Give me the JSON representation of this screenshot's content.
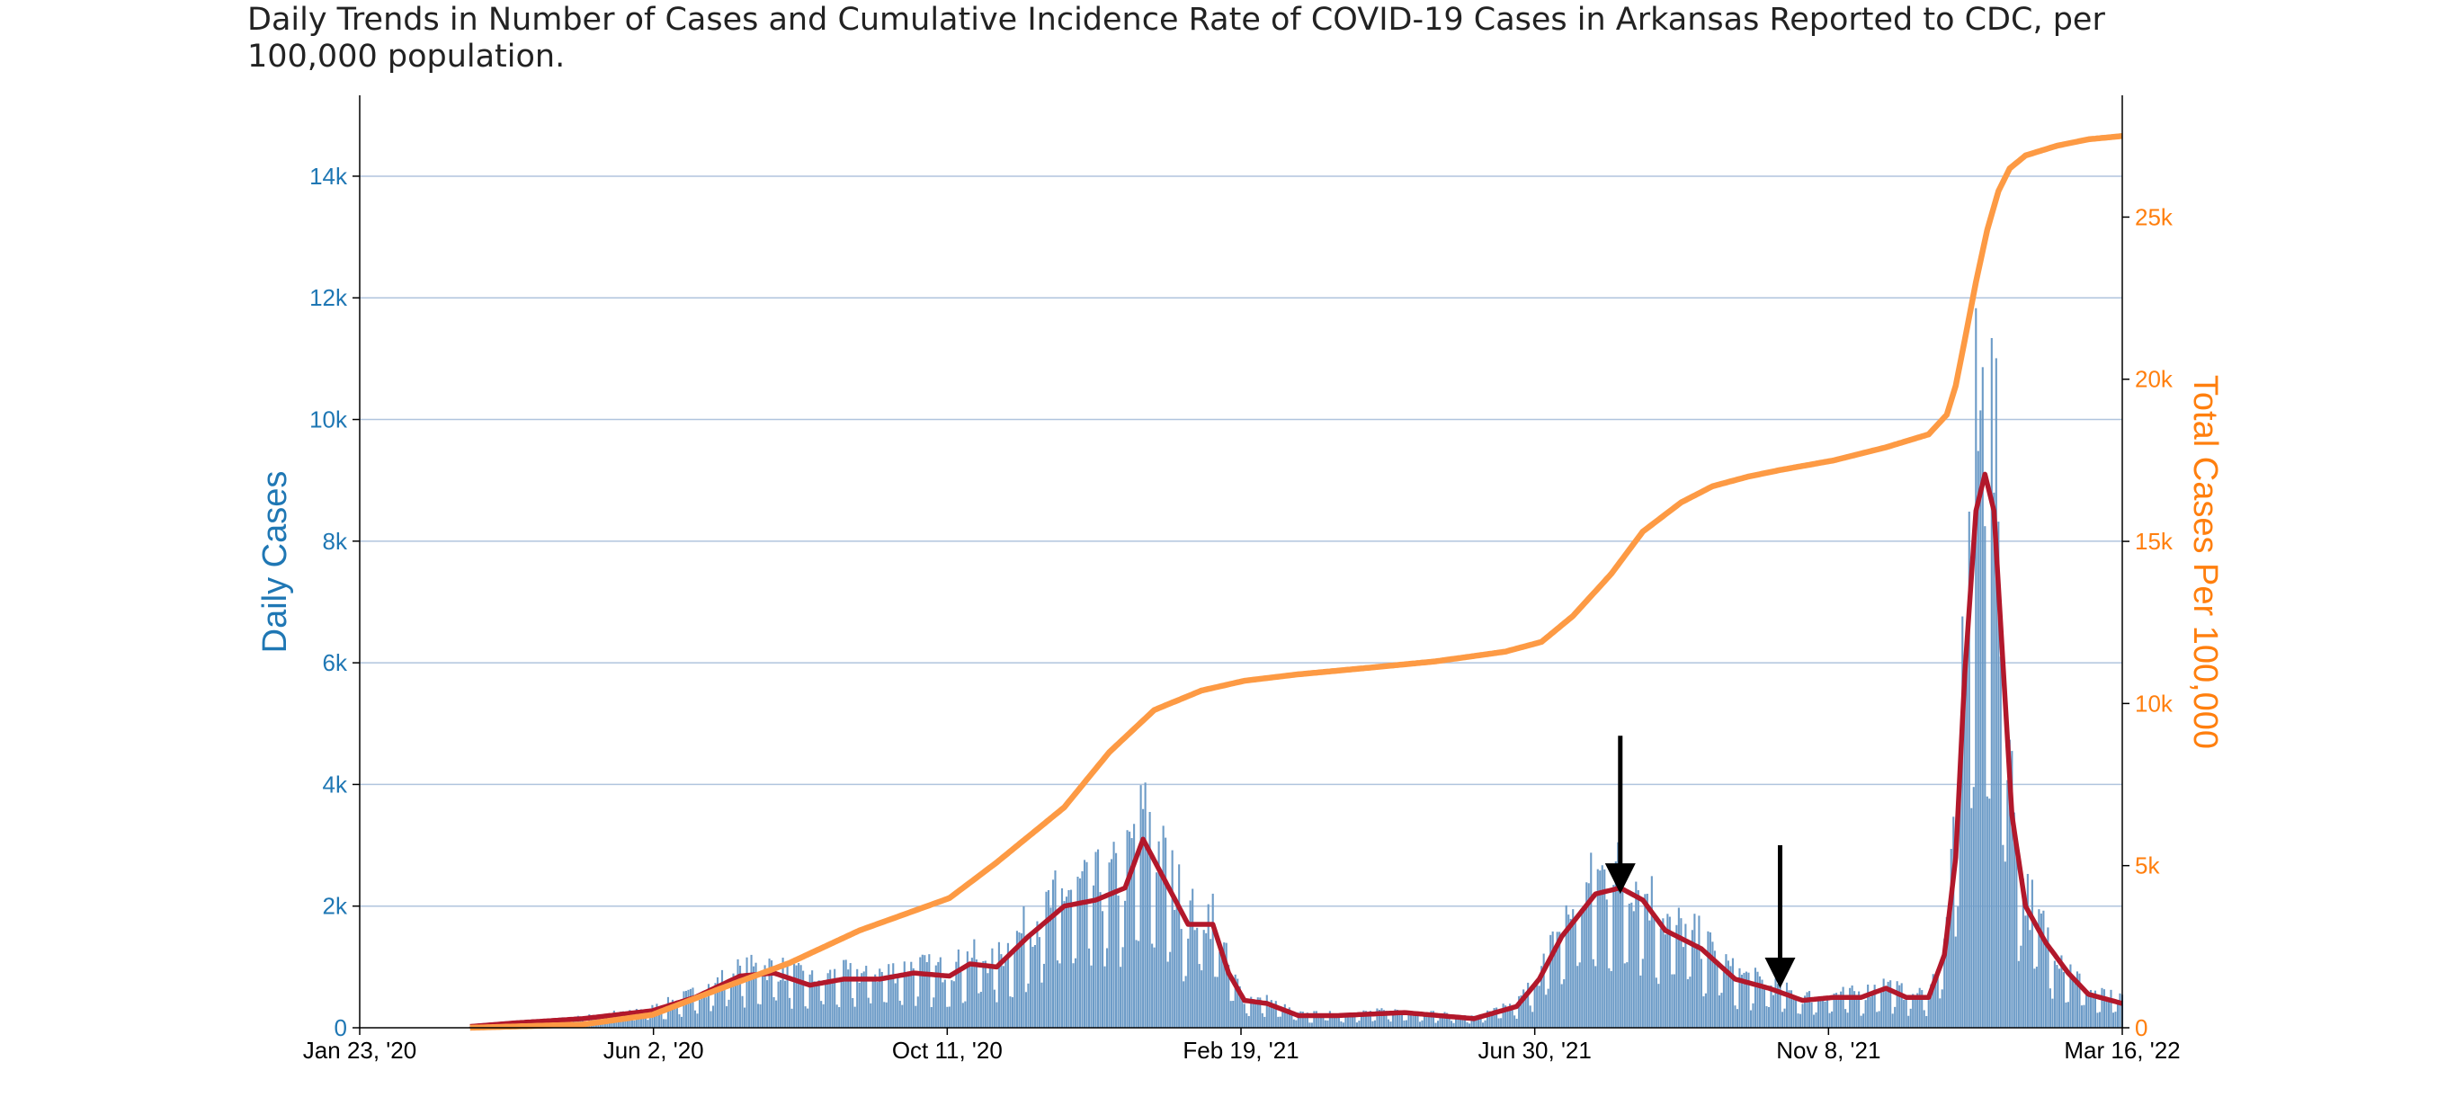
{
  "chart_data": {
    "type": "bar",
    "title": "Daily Trends in Number of Cases and Cumulative Incidence Rate of COVID-19 Cases in Arkansas Reported to CDC, per 100,000 population.",
    "ylabel": "Daily Cases",
    "ylabel_right": "Total Cases Per 100,000",
    "grid": true,
    "x_range": [
      "2020-01-23",
      "2022-03-16"
    ],
    "x_tick_labels": [
      "Jan 23, '20",
      "Jun 2, '20",
      "Oct 11, '20",
      "Feb 19, '21",
      "Jun 30, '21",
      "Nov 8, '21",
      "Mar 16, '22"
    ],
    "y_left_range": [
      0,
      15300
    ],
    "y_left_tick_values": [
      0,
      2000,
      4000,
      6000,
      8000,
      10000,
      12000,
      14000
    ],
    "y_left_tick_labels": [
      "0",
      "2k",
      "4k",
      "6k",
      "8k",
      "10k",
      "12k",
      "14k"
    ],
    "y_right_range": [
      0,
      28700
    ],
    "y_right_tick_values": [
      0,
      5000,
      10000,
      15000,
      20000,
      25000
    ],
    "y_right_tick_labels": [
      "0",
      "5k",
      "10k",
      "15k",
      "20k",
      "25k"
    ],
    "colors": {
      "bars": "#6c9bc7",
      "moving_average": "#b2182b",
      "cumulative": "#fd9a44",
      "left_axis": "#1f77b4",
      "right_axis": "#ff7f0e",
      "grid": "#b0c4de"
    },
    "daily_cases_keypoints": {
      "x": [
        "2020-03-12",
        "2020-04-01",
        "2020-05-01",
        "2020-06-01",
        "2020-06-20",
        "2020-07-10",
        "2020-07-25",
        "2020-08-10",
        "2020-08-25",
        "2020-09-10",
        "2020-09-25",
        "2020-10-11",
        "2020-10-20",
        "2020-11-01",
        "2020-11-15",
        "2020-12-01",
        "2020-12-15",
        "2020-12-28",
        "2021-01-05",
        "2021-01-15",
        "2021-01-25",
        "2021-02-05",
        "2021-02-12",
        "2021-02-19",
        "2021-03-01",
        "2021-03-15",
        "2021-04-01",
        "2021-05-01",
        "2021-06-01",
        "2021-06-20",
        "2021-06-30",
        "2021-07-10",
        "2021-07-25",
        "2021-08-05",
        "2021-08-15",
        "2021-08-25",
        "2021-09-10",
        "2021-09-25",
        "2021-10-10",
        "2021-10-25",
        "2021-11-08",
        "2021-11-20",
        "2021-12-01",
        "2021-12-10",
        "2021-12-20",
        "2021-12-27",
        "2022-01-01",
        "2022-01-05",
        "2022-01-10",
        "2022-01-14",
        "2022-01-18",
        "2022-01-22",
        "2022-01-26",
        "2022-02-01",
        "2022-02-10",
        "2022-02-20",
        "2022-03-01",
        "2022-03-16"
      ],
      "y": [
        20,
        80,
        150,
        280,
        500,
        850,
        900,
        700,
        800,
        800,
        900,
        850,
        1050,
        1000,
        1500,
        2000,
        2100,
        2300,
        3100,
        2400,
        1700,
        1700,
        900,
        450,
        400,
        200,
        200,
        250,
        150,
        350,
        800,
        1500,
        2200,
        2300,
        2100,
        1600,
        1300,
        800,
        650,
        450,
        500,
        500,
        650,
        500,
        500,
        1200,
        2800,
        5800,
        8500,
        9100,
        8500,
        6000,
        3500,
        2000,
        1400,
        900,
        550,
        400
      ]
    },
    "cumulative_keypoints": {
      "x": [
        "2020-03-12",
        "2020-05-01",
        "2020-06-01",
        "2020-07-01",
        "2020-08-01",
        "2020-09-01",
        "2020-10-11",
        "2020-11-01",
        "2020-12-01",
        "2020-12-21",
        "2021-01-10",
        "2021-01-31",
        "2021-02-19",
        "2021-03-15",
        "2021-04-15",
        "2021-05-15",
        "2021-06-15",
        "2021-07-01",
        "2021-07-15",
        "2021-08-01",
        "2021-08-15",
        "2021-09-01",
        "2021-09-15",
        "2021-10-01",
        "2021-10-15",
        "2021-11-08",
        "2021-12-01",
        "2021-12-20",
        "2021-12-28",
        "2022-01-01",
        "2022-01-05",
        "2022-01-10",
        "2022-01-15",
        "2022-01-20",
        "2022-01-25",
        "2022-02-01",
        "2022-02-15",
        "2022-03-01",
        "2022-03-16"
      ],
      "y": [
        0,
        100,
        400,
        1200,
        2000,
        3000,
        4000,
        5100,
        6800,
        8500,
        9800,
        10400,
        10700,
        10900,
        11100,
        11300,
        11600,
        11900,
        12700,
        14000,
        15300,
        16200,
        16700,
        17000,
        17200,
        17500,
        17900,
        18300,
        18900,
        19800,
        21200,
        23000,
        24600,
        25800,
        26500,
        26900,
        27200,
        27400,
        27500
      ]
    },
    "annotations": [
      {
        "type": "arrow",
        "x": "2021-08-05",
        "y": 2200,
        "y_tail": 4800
      },
      {
        "type": "arrow",
        "x": "2021-10-15",
        "y": 650,
        "y_tail": 3000
      }
    ]
  }
}
